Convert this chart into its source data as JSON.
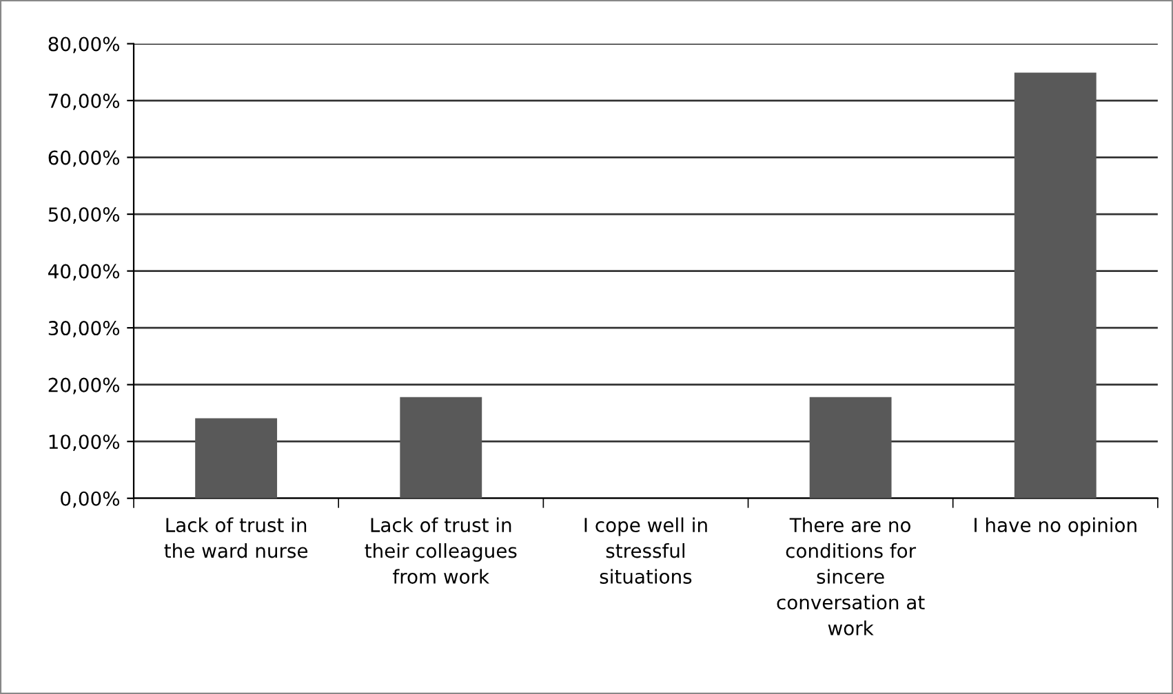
{
  "chart_data": {
    "type": "bar",
    "categories": [
      "Lack of trust in the ward nurse",
      "Lack of trust in their colleagues from work",
      "I cope well in stressful situations",
      "There are no conditions for sincere conversation at work",
      "I have no opinion"
    ],
    "values": [
      14.1,
      17.8,
      0,
      17.8,
      74.9
    ],
    "color": "#595959",
    "ylim": [
      0,
      80
    ],
    "yticks": [
      {
        "value": 0,
        "label": "0,00%"
      },
      {
        "value": 10,
        "label": "10,00%"
      },
      {
        "value": 20,
        "label": "20,00%"
      },
      {
        "value": 30,
        "label": "30,00%"
      },
      {
        "value": 40,
        "label": "40,00%"
      },
      {
        "value": 50,
        "label": "50,00%"
      },
      {
        "value": 60,
        "label": "60,00%"
      },
      {
        "value": 70,
        "label": "70,00%"
      },
      {
        "value": 80,
        "label": "80,00%"
      }
    ],
    "grid": "y",
    "legend": false
  }
}
